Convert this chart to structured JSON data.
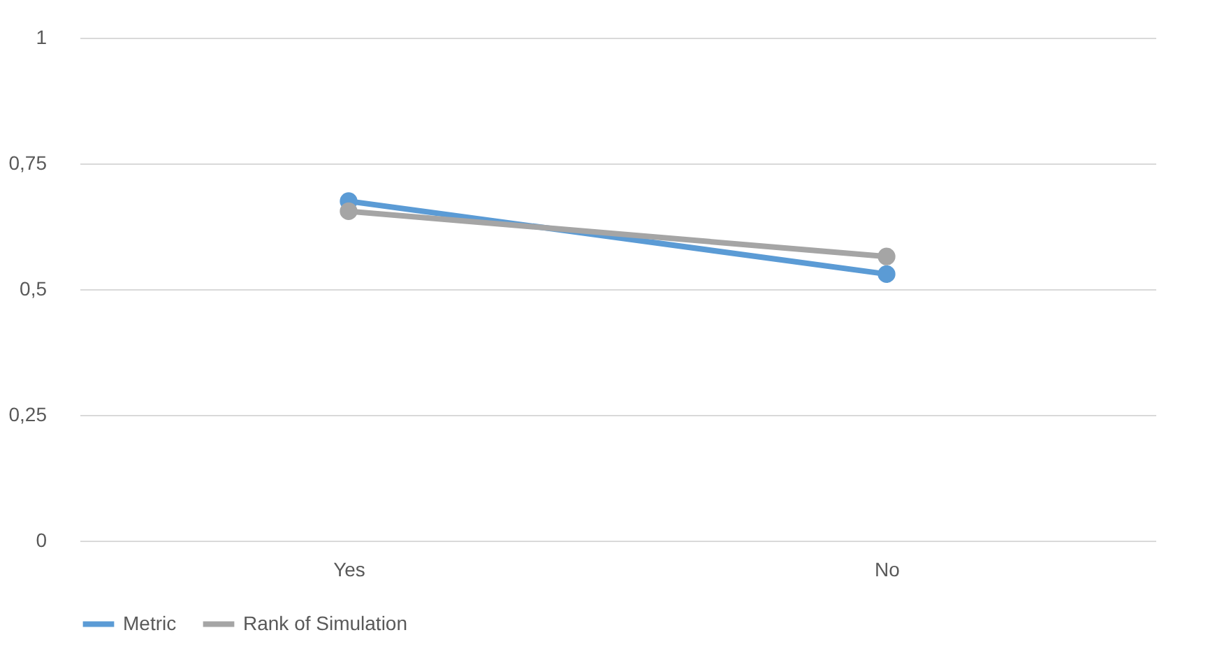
{
  "chart_data": {
    "type": "line",
    "categories": [
      "Yes",
      "No"
    ],
    "series": [
      {
        "name": "Metric",
        "color": "#5b9bd5",
        "values": [
          0.675,
          0.53
        ]
      },
      {
        "name": "Rank of Simulation",
        "color": "#a5a5a5",
        "values": [
          0.655,
          0.565
        ]
      }
    ],
    "ylim": [
      0,
      1
    ],
    "yticks": [
      0,
      {
        "value": 0.25,
        "label": "0,25"
      },
      {
        "value": 0.5,
        "label": "0,5"
      },
      {
        "value": 0.75,
        "label": "0,75"
      },
      1
    ],
    "grid": "y",
    "legend": "bottom",
    "marker": "circle",
    "line_style": "solid"
  }
}
